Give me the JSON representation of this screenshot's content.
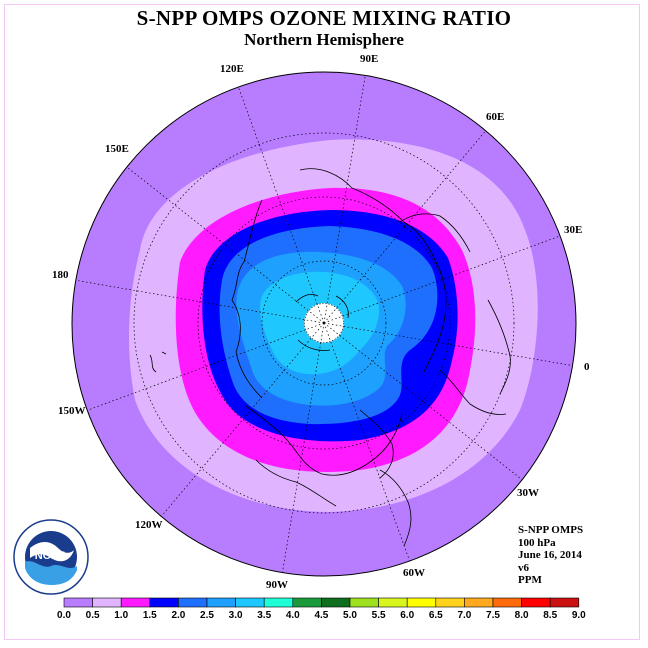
{
  "header": {
    "title": "S-NPP OMPS OZONE MIXING RATIO",
    "subtitle": "Northern Hemisphere"
  },
  "map": {
    "projection": "north polar stereographic",
    "longitude_labels": [
      {
        "text": "90E"
      },
      {
        "text": "60E"
      },
      {
        "text": "30E"
      },
      {
        "text": "0"
      },
      {
        "text": "30W"
      },
      {
        "text": "60W"
      },
      {
        "text": "90W"
      },
      {
        "text": "120W"
      },
      {
        "text": "150W"
      },
      {
        "text": "180"
      },
      {
        "text": "150E"
      },
      {
        "text": "120E"
      }
    ],
    "pole_missing_data_color": "#ffffff"
  },
  "info": {
    "instrument": "S-NPP OMPS",
    "level": "100 hPa",
    "date": "June 16, 2014",
    "version": "v6",
    "units": "PPM"
  },
  "legend": {
    "ticks": [
      "0.0",
      "0.5",
      "1.0",
      "1.5",
      "2.0",
      "2.5",
      "3.0",
      "3.5",
      "4.0",
      "4.5",
      "5.0",
      "5.5",
      "6.0",
      "6.5",
      "7.0",
      "7.5",
      "8.0",
      "8.5",
      "9.0"
    ],
    "colors": [
      "#b87cff",
      "#e0b4ff",
      "#ff1aff",
      "#0000ff",
      "#1f6fff",
      "#1ea0ff",
      "#1ec8ff",
      "#1effd8",
      "#1a9a3a",
      "#0e6e1e",
      "#9ee01e",
      "#d8f51e",
      "#ffff00",
      "#ffd21e",
      "#ffaa1e",
      "#ff6a0a",
      "#ff0000",
      "#cc1111",
      "#8a5a3a"
    ]
  },
  "logo": {
    "text": "NOAA",
    "ring_text": "NATIONAL OCEANIC AND ATMOSPHERIC ADMINISTRATION · U.S. DEPARTMENT OF COMMERCE"
  }
}
